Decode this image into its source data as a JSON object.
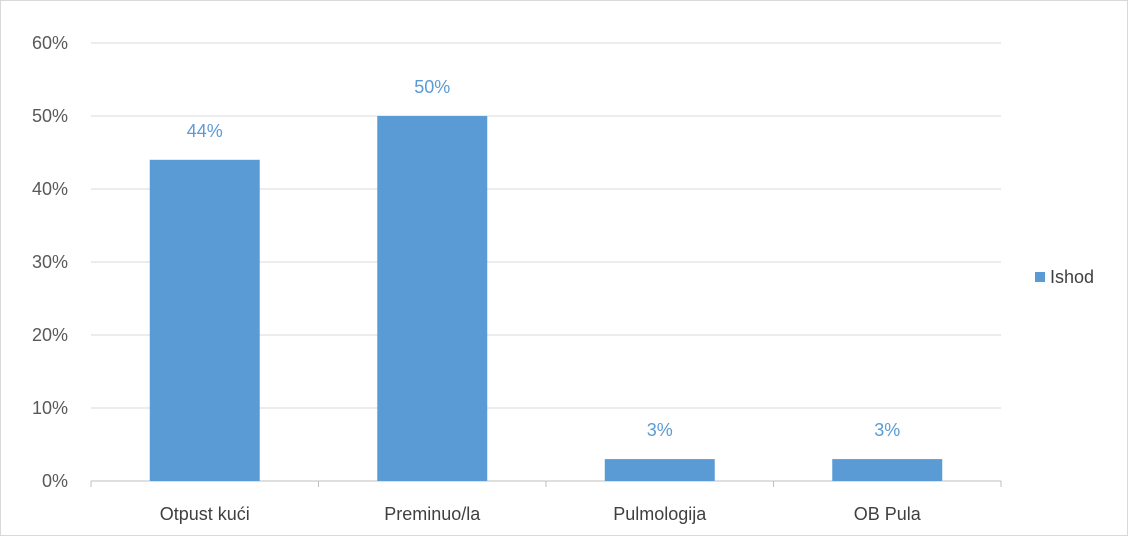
{
  "chart_data": {
    "type": "bar",
    "categories": [
      "Otpust kući",
      "Preminuo/la",
      "Pulmologija",
      "OB Pula"
    ],
    "series": [
      {
        "name": "Ishod",
        "values": [
          0.44,
          0.5,
          0.03,
          0.03
        ],
        "color": "#5b9bd5"
      }
    ],
    "data_labels": [
      "44%",
      "50%",
      "3%",
      "3%"
    ],
    "y_ticks": [
      "0%",
      "10%",
      "20%",
      "30%",
      "40%",
      "50%",
      "60%"
    ],
    "ylim": [
      0,
      0.6
    ],
    "grid": true,
    "legend_position": "right",
    "colors": {
      "bar": "#5b9bd5",
      "data_label": "#5b9bd5",
      "grid": "#d9d9d9",
      "axis": "#bfbfbf"
    }
  }
}
